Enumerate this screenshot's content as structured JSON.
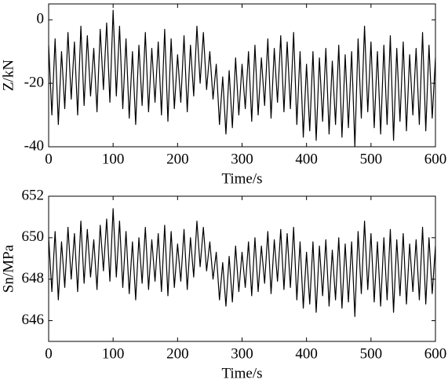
{
  "chart_data": [
    {
      "type": "line",
      "xlabel": "Time/s",
      "ylabel": "Z/kN",
      "x": [
        0,
        5,
        10,
        15,
        20,
        25,
        30,
        35,
        40,
        45,
        50,
        55,
        60,
        65,
        70,
        75,
        80,
        85,
        90,
        95,
        100,
        105,
        110,
        115,
        120,
        125,
        130,
        135,
        140,
        145,
        150,
        155,
        160,
        165,
        170,
        175,
        180,
        185,
        190,
        195,
        200,
        205,
        210,
        215,
        220,
        225,
        230,
        235,
        240,
        245,
        250,
        255,
        260,
        265,
        270,
        275,
        280,
        285,
        290,
        295,
        300,
        305,
        310,
        315,
        320,
        325,
        330,
        335,
        340,
        345,
        350,
        355,
        360,
        365,
        370,
        375,
        380,
        385,
        390,
        395,
        400,
        405,
        410,
        415,
        420,
        425,
        430,
        435,
        440,
        445,
        450,
        455,
        460,
        465,
        470,
        475,
        480,
        485,
        490,
        495,
        500,
        505,
        510,
        515,
        520,
        525,
        530,
        535,
        540,
        545,
        550,
        555,
        560,
        565,
        570,
        575,
        580,
        585,
        590,
        595,
        600
      ],
      "series": [
        {
          "color": "#000000",
          "values": [
            -8,
            -30,
            -6,
            -33,
            -10,
            -28,
            -4,
            -25,
            -7,
            -30,
            -2,
            -27,
            -5,
            -24,
            -9,
            -29,
            -3,
            -22,
            -1,
            -26,
            3,
            -24,
            -2,
            -28,
            -6,
            -31,
            -10,
            -33,
            -8,
            -27,
            -4,
            -29,
            -9,
            -26,
            -7,
            -30,
            -3,
            -32,
            -6,
            -28,
            -11,
            -26,
            -5,
            -29,
            -8,
            -24,
            -2,
            -20,
            -4,
            -22,
            -10,
            -25,
            -14,
            -33,
            -18,
            -36,
            -16,
            -34,
            -12,
            -30,
            -14,
            -28,
            -10,
            -32,
            -8,
            -30,
            -12,
            -27,
            -6,
            -31,
            -9,
            -26,
            -5,
            -29,
            -7,
            -28,
            -4,
            -33,
            -10,
            -37,
            -14,
            -35,
            -10,
            -38,
            -12,
            -32,
            -9,
            -36,
            -13,
            -33,
            -8,
            -37,
            -11,
            -34,
            -10,
            -40,
            -6,
            -31,
            -2,
            -29,
            -7,
            -34,
            -10,
            -36,
            -8,
            -33,
            -5,
            -38,
            -9,
            -32,
            -7,
            -35,
            -11,
            -30,
            -9,
            -33,
            -4,
            -35,
            -8,
            -31,
            -12
          ]
        }
      ],
      "xlim": [
        0,
        600
      ],
      "xticks": [
        0,
        100,
        200,
        300,
        400,
        500,
        600
      ],
      "ylim": [
        -40,
        5
      ],
      "yticks": [
        -40,
        -20,
        0
      ]
    },
    {
      "type": "line",
      "xlabel": "Time/s",
      "ylabel": "Sn/MPa",
      "x": [
        0,
        5,
        10,
        15,
        20,
        25,
        30,
        35,
        40,
        45,
        50,
        55,
        60,
        65,
        70,
        75,
        80,
        85,
        90,
        95,
        100,
        105,
        110,
        115,
        120,
        125,
        130,
        135,
        140,
        145,
        150,
        155,
        160,
        165,
        170,
        175,
        180,
        185,
        190,
        195,
        200,
        205,
        210,
        215,
        220,
        225,
        230,
        235,
        240,
        245,
        250,
        255,
        260,
        265,
        270,
        275,
        280,
        285,
        290,
        295,
        300,
        305,
        310,
        315,
        320,
        325,
        330,
        335,
        340,
        345,
        350,
        355,
        360,
        365,
        370,
        375,
        380,
        385,
        390,
        395,
        400,
        405,
        410,
        415,
        420,
        425,
        430,
        435,
        440,
        445,
        450,
        455,
        460,
        465,
        470,
        475,
        480,
        485,
        490,
        495,
        500,
        505,
        510,
        515,
        520,
        525,
        530,
        535,
        540,
        545,
        550,
        555,
        560,
        565,
        570,
        575,
        580,
        585,
        590,
        595,
        600
      ],
      "series": [
        {
          "color": "#000000",
          "values": [
            650.0,
            647.4,
            650.3,
            647.0,
            649.8,
            647.6,
            650.5,
            648.0,
            650.2,
            647.4,
            650.8,
            647.8,
            650.4,
            648.1,
            649.9,
            647.5,
            650.6,
            648.4,
            650.9,
            647.9,
            651.4,
            648.1,
            650.8,
            647.6,
            650.3,
            647.3,
            649.8,
            647.0,
            650.0,
            647.8,
            650.5,
            647.5,
            649.9,
            647.9,
            650.2,
            647.4,
            650.6,
            647.2,
            650.3,
            647.6,
            649.7,
            647.9,
            650.4,
            647.5,
            650.0,
            648.1,
            650.8,
            648.6,
            650.5,
            648.4,
            649.8,
            648.0,
            649.3,
            647.0,
            648.8,
            646.7,
            649.1,
            646.9,
            649.6,
            647.4,
            649.3,
            647.6,
            649.8,
            647.2,
            650.0,
            647.4,
            649.6,
            647.8,
            650.3,
            647.3,
            649.9,
            647.9,
            650.4,
            647.5,
            650.2,
            647.6,
            650.5,
            647.0,
            649.8,
            646.6,
            649.3,
            646.8,
            649.8,
            646.4,
            649.6,
            647.2,
            649.9,
            646.7,
            649.4,
            647.0,
            650.0,
            646.6,
            649.7,
            646.9,
            649.8,
            646.2,
            650.3,
            647.3,
            650.8,
            647.5,
            650.2,
            646.9,
            649.8,
            646.7,
            650.0,
            647.0,
            650.4,
            646.4,
            649.9,
            647.2,
            650.2,
            646.8,
            649.7,
            647.4,
            649.9,
            647.0,
            650.5,
            646.8,
            650.0,
            647.3,
            649.6
          ]
        }
      ],
      "xlim": [
        0,
        600
      ],
      "xticks": [
        0,
        100,
        200,
        300,
        400,
        500,
        600
      ],
      "ylim": [
        645,
        652
      ],
      "yticks": [
        646,
        648,
        650,
        652
      ]
    }
  ]
}
